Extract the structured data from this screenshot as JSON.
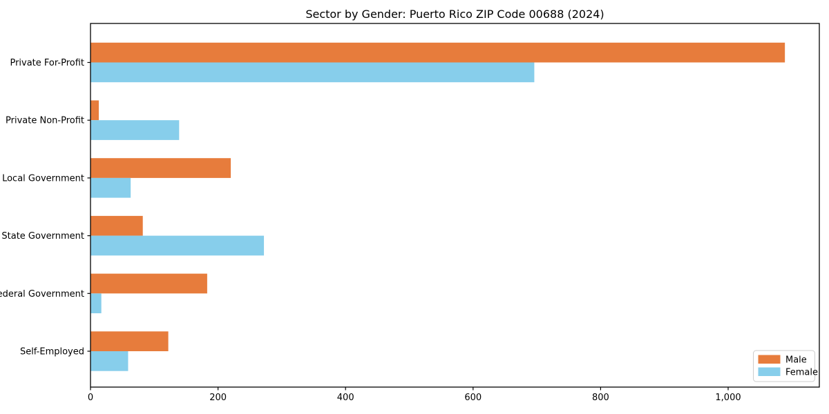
{
  "figure": {
    "background": "#ffffff"
  },
  "chart_data": {
    "type": "bar",
    "orientation": "horizontal",
    "title": "Sector by Gender: Puerto Rico ZIP Code 00688 (2024)",
    "categories": [
      "Private For-Profit",
      "Private Non-Profit",
      "Local Government",
      "State Government",
      "Federal Government",
      "Self-Employed"
    ],
    "series": [
      {
        "name": "Male",
        "color": "#e77c3c",
        "values": [
          1089,
          13,
          220,
          82,
          183,
          122
        ]
      },
      {
        "name": "Female",
        "color": "#87ceeb",
        "values": [
          696,
          139,
          63,
          272,
          17,
          59
        ]
      }
    ],
    "xlabel": "",
    "ylabel": "",
    "xlim": [
      0,
      1143
    ],
    "xticks": [
      0,
      200,
      400,
      600,
      800,
      1000
    ],
    "xticklabels": [
      "0",
      "200",
      "400",
      "600",
      "800",
      "1,000"
    ],
    "grid": false,
    "legend_position": "lower right",
    "axis_color": "#000000",
    "text_color": "#000000"
  }
}
